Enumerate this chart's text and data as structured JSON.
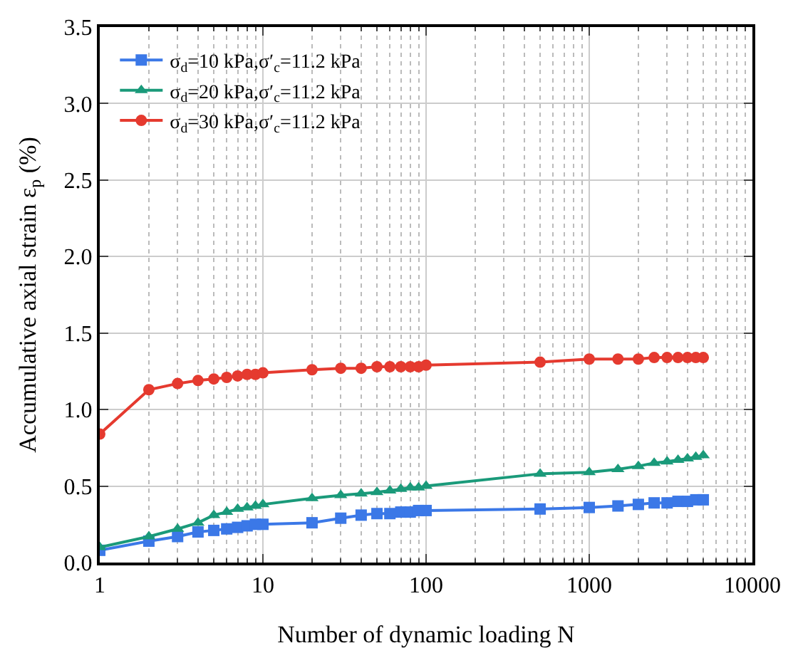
{
  "chart_data": {
    "type": "line",
    "xlabel": "Number of dynamic loading N",
    "ylabel": "Accumulative axial strain ε$_{p}$ (%)",
    "x": [
      1,
      2,
      3,
      4,
      5,
      6,
      7,
      8,
      9,
      10,
      20,
      30,
      40,
      50,
      60,
      70,
      80,
      90,
      100,
      500,
      1000,
      1500,
      2000,
      2500,
      3000,
      3500,
      4000,
      4500,
      5000
    ],
    "series": [
      {
        "name": "σ$_{d}$=10 kPa,σ′$_{c}$=11.2 kPa",
        "color": "#3b78e7",
        "marker": "square",
        "values": [
          0.08,
          0.14,
          0.17,
          0.2,
          0.21,
          0.22,
          0.23,
          0.24,
          0.25,
          0.25,
          0.26,
          0.29,
          0.31,
          0.32,
          0.32,
          0.33,
          0.33,
          0.34,
          0.34,
          0.35,
          0.36,
          0.37,
          0.38,
          0.39,
          0.39,
          0.4,
          0.4,
          0.41,
          0.41
        ]
      },
      {
        "name": "σ$_{d}$=20 kPa,σ′$_{c}$=11.2 kPa",
        "color": "#1a9a7a",
        "marker": "triangle",
        "values": [
          0.1,
          0.17,
          0.22,
          0.26,
          0.31,
          0.33,
          0.35,
          0.36,
          0.37,
          0.38,
          0.42,
          0.44,
          0.45,
          0.46,
          0.47,
          0.48,
          0.49,
          0.49,
          0.5,
          0.58,
          0.59,
          0.61,
          0.63,
          0.65,
          0.66,
          0.67,
          0.68,
          0.69,
          0.7
        ]
      },
      {
        "name": "σ$_{d}$=30 kPa,σ′$_{c}$=11.2 kPa",
        "color": "#e53a2f",
        "marker": "circle",
        "values": [
          0.84,
          1.13,
          1.17,
          1.19,
          1.2,
          1.21,
          1.22,
          1.23,
          1.23,
          1.24,
          1.26,
          1.27,
          1.27,
          1.28,
          1.28,
          1.28,
          1.28,
          1.28,
          1.29,
          1.31,
          1.33,
          1.33,
          1.33,
          1.34,
          1.34,
          1.34,
          1.34,
          1.34,
          1.34
        ]
      }
    ],
    "log": "x",
    "xlim": [
      1,
      10000
    ],
    "xticks": [
      1,
      10,
      100,
      1000,
      10000
    ],
    "ylim": [
      0,
      3.5
    ],
    "yticks": [
      {
        "value": 0,
        "label": "0.0"
      },
      {
        "value": 0.5,
        "label": "0.5"
      },
      {
        "value": 1,
        "label": "1.0"
      },
      {
        "value": 1.5,
        "label": "1.5"
      },
      {
        "value": 2,
        "label": "2.0"
      },
      {
        "value": 2.5,
        "label": "2.5"
      },
      {
        "value": 3,
        "label": "3.0"
      },
      {
        "value": 3.5,
        "label": "3.5"
      }
    ],
    "grid": true,
    "legend": "top left",
    "line_style": "solid"
  }
}
